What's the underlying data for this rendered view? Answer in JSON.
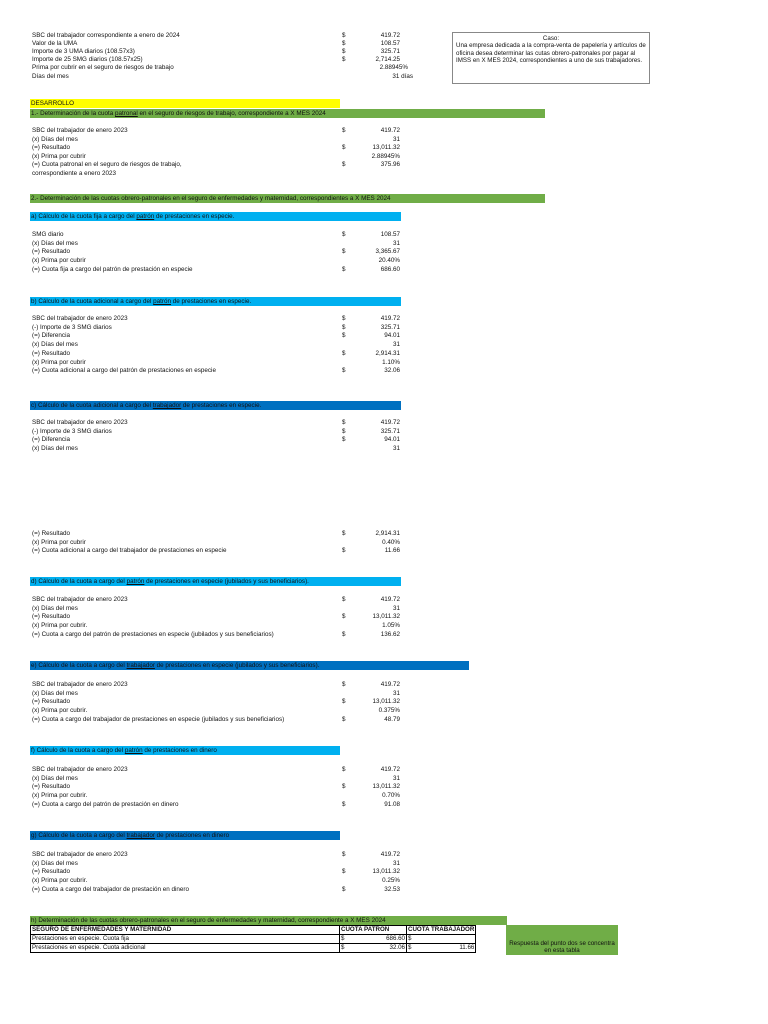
{
  "header": {
    "rows": [
      {
        "label": "SBC  del trabajador correspondiente a enero de 2024",
        "cur": "$",
        "val": "419.72"
      },
      {
        "label": "Valor de la UMA",
        "cur": "$",
        "val": "108.57"
      },
      {
        "label": "Importe de 3 UMA diarios (108.57x3)",
        "cur": "$",
        "val": "325.71"
      },
      {
        "label": "Importe de 25 SMG diarios (108.57x25)",
        "cur": "$",
        "val": "2,714.25"
      },
      {
        "label": "Prima por cubrir en el seguro de riesgos de trabajo",
        "cur": "",
        "val": "2.88945%"
      },
      {
        "label": "Días del mes",
        "cur": "",
        "val": "31 días"
      }
    ]
  },
  "case": {
    "title": "Caso:",
    "text": "Una empresa dedicada a la compra-venta de papelería y artículos de oficina desea determinar las cutas obrero-patronales por pagar al IMSS en X MES 2024, correspondientes a uno de sus trabajadores."
  },
  "desarrollo": "DESARROLLO",
  "s1": {
    "pre": "1.- Determinación  de la cuota ",
    "em": "patronal",
    "post": " en el seguro de riesgos de trabajo, correspondiente a X MES 2024",
    "rows": [
      {
        "label": "SBC del trabajador de enero 2023",
        "cur": "$",
        "val": "419.72"
      },
      {
        "label": "(x) Días del mes",
        "cur": "",
        "val": "31"
      },
      {
        "label": "(=) Resultado",
        "cur": "$",
        "val": "13,011.32"
      },
      {
        "label": "(x) Prima por cubrir",
        "cur": "",
        "val": "2.88945%"
      },
      {
        "label": "(=) Cuota patronal en el seguro de riesgos de trabajo,",
        "cur": "$",
        "val": "375.96"
      },
      {
        "label": "correspondiente a enero 2023",
        "cur": "",
        "val": ""
      }
    ]
  },
  "s2": "2.- Determinación de las cuotas obrero-patronales en el seguro de enfermedades y maternidad, correspondientes a X MES 2024",
  "a": {
    "pre": "a) Cálculo de la cuota fija a cargo del ",
    "em": "patrón",
    "post": " de prestaciones en especie.",
    "rows": [
      {
        "label": "SMG diario",
        "cur": "$",
        "val": "108.57"
      },
      {
        "label": "(x) Días del mes",
        "cur": "",
        "val": "31"
      },
      {
        "label": "(=) Resultado",
        "cur": "$",
        "val": "3,365.67"
      },
      {
        "label": "(x) Prima por cubrir",
        "cur": "",
        "val": "20.40%"
      },
      {
        "label": "(=) Cuota fija a cargo del patrón de prestación en especie",
        "cur": "$",
        "val": "686.60"
      }
    ]
  },
  "b": {
    "pre": "b) Cálculo de la cuota adicional a cargo del ",
    "em": "patrón",
    "post": " de prestaciones en especie.",
    "rows": [
      {
        "label": "SBC del trabajador de enero 2023",
        "cur": "$",
        "val": "419.72"
      },
      {
        "label": "(-) Importe de 3 SMG diarios",
        "cur": "$",
        "val": "325.71"
      },
      {
        "label": "(=) Diferencia",
        "cur": "$",
        "val": "94.01"
      },
      {
        "label": "(x) Días del mes",
        "cur": "",
        "val": "31"
      },
      {
        "label": "(=) Resultado",
        "cur": "$",
        "val": "2,914.31"
      },
      {
        "label": "(x) Prima por cubrir",
        "cur": "",
        "val": "1.10%"
      },
      {
        "label": "(=) Cuota adicional a cargo del patrón de prestaciones en especie",
        "cur": "$",
        "val": "32.06"
      }
    ]
  },
  "c": {
    "pre": "c) Cálculo de la cuota  adicional a cargo del ",
    "em": "trabajador",
    "post": " de prestaciones en especie.",
    "rows1": [
      {
        "label": "SBC del trabajador de enero 2023",
        "cur": "$",
        "val": "419.72"
      },
      {
        "label": "(-) Importe de 3 SMG diarios",
        "cur": "$",
        "val": "325.71"
      },
      {
        "label": "(=) Diferencia",
        "cur": "$",
        "val": "94.01"
      },
      {
        "label": "(x) Días del mes",
        "cur": "",
        "val": "31"
      }
    ],
    "rows2": [
      {
        "label": "(=) Resultado",
        "cur": "$",
        "val": "2,914.31"
      },
      {
        "label": "(x) Prima por cubrir",
        "cur": "",
        "val": "0.40%"
      },
      {
        "label": "(=) Cuota adicional a cargo del trabajador de prestaciones en especie",
        "cur": "$",
        "val": "11.66"
      }
    ]
  },
  "d": {
    "pre": "d) Cálculo de la cuota  a cargo del ",
    "em": "patrón",
    "post": " de prestaciones en especie (jubilados y sus beneficiarios).",
    "rows": [
      {
        "label": "SBC del trabajador de enero 2023",
        "cur": "$",
        "val": "419.72"
      },
      {
        "label": "(x) Días del mes",
        "cur": "",
        "val": "31"
      },
      {
        "label": "(=) Resultado",
        "cur": "$",
        "val": "13,011.32"
      },
      {
        "label": "(x) Prima por cubrir.",
        "cur": "",
        "val": "1.05%"
      },
      {
        "label": "(=) Cuota a cargo  del patrón de prestaciones en especie (jubilados y sus beneficiarios)",
        "cur": "$",
        "val": "136.62"
      }
    ]
  },
  "e": {
    "pre": "e) Cálculo de la cuota  a cargo del ",
    "em": "trabajador",
    "post": " de prestaciones en especie (jubilados y sus beneficiarios).",
    "rows": [
      {
        "label": "SBC del trabajador de enero 2023",
        "cur": "$",
        "val": "419.72"
      },
      {
        "label": "(x) Días del mes",
        "cur": "",
        "val": "31"
      },
      {
        "label": "(=) Resultado",
        "cur": "$",
        "val": "13,011.32"
      },
      {
        "label": "(x) Prima por cubrir.",
        "cur": "",
        "val": "0.375%"
      },
      {
        "label": "(=) Cuota a cargo  del trabajador de prestaciones en especie (jubilados y sus beneficiarios)",
        "cur": "$",
        "val": "48.79"
      }
    ]
  },
  "f": {
    "pre": "f) Cálculo de la cuota a cargo del ",
    "em": "patrón",
    "post": " de prestaciones en dinero",
    "rows": [
      {
        "label": "SBC del trabajador de enero 2023",
        "cur": "$",
        "val": "419.72"
      },
      {
        "label": "(x) Días del mes",
        "cur": "",
        "val": "31"
      },
      {
        "label": "(=) Resultado",
        "cur": "$",
        "val": "13,011.32"
      },
      {
        "label": "(x) Prima por cubrir.",
        "cur": "",
        "val": "0.70%"
      },
      {
        "label": "(=) Cuota a cargo del patrón de prestación en dinero",
        "cur": "$",
        "val": "91.08"
      }
    ]
  },
  "g": {
    "pre": "g) Cálculo de la cuota a cargo del ",
    "em": "trabajador",
    "post": " de prestaciones en dinero",
    "rows": [
      {
        "label": "SBC del trabajador de enero 2023",
        "cur": "$",
        "val": "419.72"
      },
      {
        "label": "(x) Días del mes",
        "cur": "",
        "val": "31"
      },
      {
        "label": "(=) Resultado",
        "cur": "$",
        "val": "13,011.32"
      },
      {
        "label": "(x) Prima por cubrir.",
        "cur": "",
        "val": "0.25%"
      },
      {
        "label": "(=) Cuota a cargo del trabajador de prestación en dinero",
        "cur": "$",
        "val": "32.53"
      }
    ]
  },
  "h": {
    "title": "h) Determinación de las cuotas obrero-patronales en el seguro de enfermedades y maternidad, correspondiente a X MES 2024",
    "headers": [
      "SEGURO DE ENFERMEDADES Y MATERNIDAD",
      "CUOTA PATRÓN",
      "CUOTA TRABAJADOR"
    ],
    "rows": [
      {
        "concept": "Prestaciones en especie. Cuota fija",
        "patron_cur": "$",
        "patron": "686.60",
        "trab_cur": "$",
        "trab": ""
      },
      {
        "concept": "Prestaciones en especie. Cuota adicional",
        "patron_cur": "$",
        "patron": "32.06",
        "trab_cur": "$",
        "trab": "11.66"
      }
    ],
    "note": "Respuesta del punto dos se concentra en esta tabla"
  },
  "colors": {
    "green": "#70ad47",
    "yellow": "#ffff00",
    "cyan": "#00b0f0",
    "blue": "#0070c0"
  }
}
